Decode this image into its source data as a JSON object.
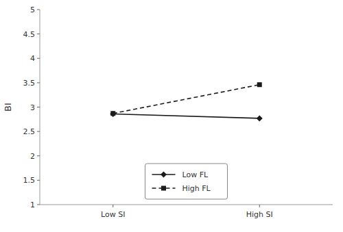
{
  "chart_data": {
    "type": "line",
    "y_label": "BI",
    "categories": [
      "Low SI",
      "High SI"
    ],
    "series": [
      {
        "name": "Low FL",
        "color": "#1a1a1a",
        "marker": "diamond",
        "line_style": "solid",
        "values": [
          2.86,
          2.77
        ]
      },
      {
        "name": "High FL",
        "color": "#1a1a1a",
        "marker": "square",
        "line_style": "dashed",
        "values": [
          2.87,
          3.46
        ]
      }
    ],
    "ylim": [
      1,
      5
    ],
    "yticks": [
      1,
      1.5,
      2,
      2.5,
      3,
      3.5,
      4,
      4.5,
      5
    ],
    "grid": false,
    "legend": "bottom"
  }
}
